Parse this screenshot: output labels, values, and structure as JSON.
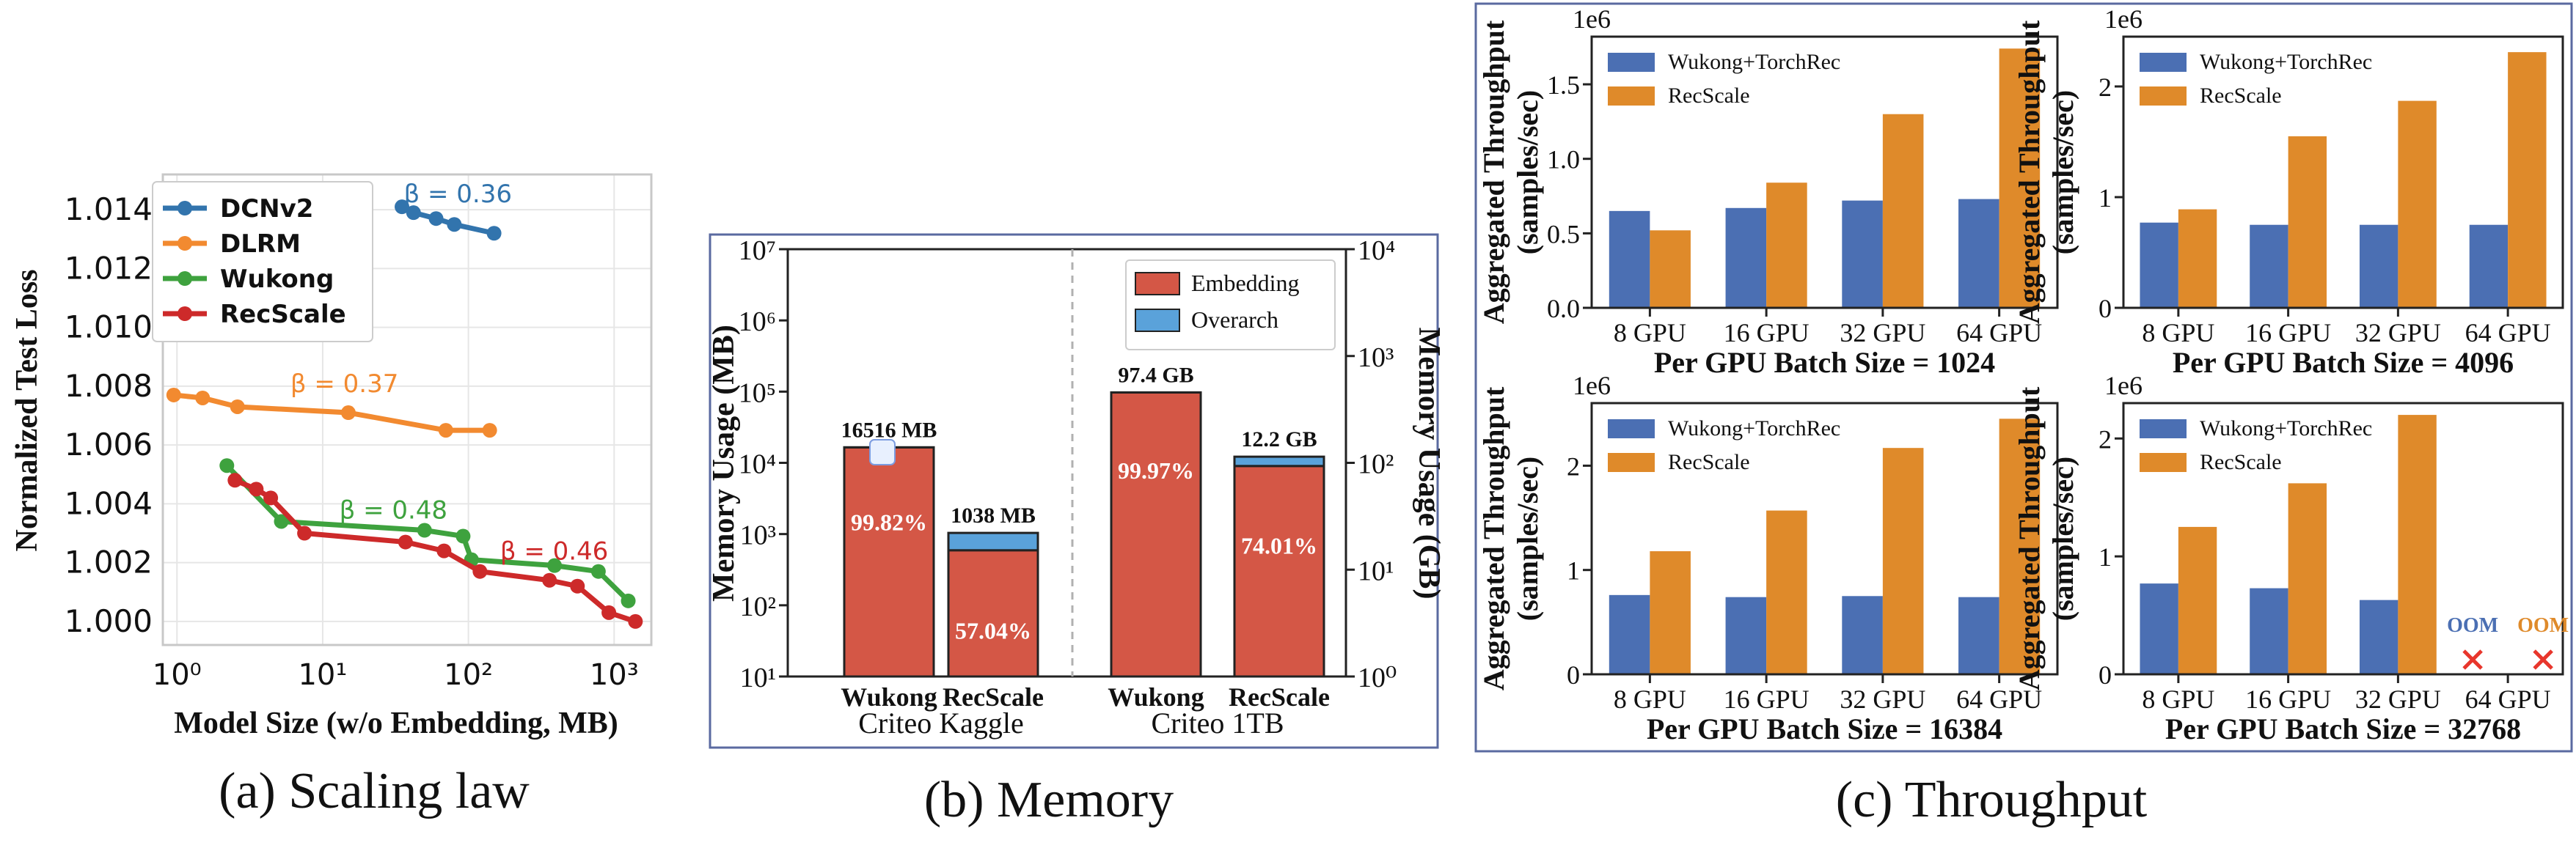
{
  "captions": {
    "a": "(a) Scaling law",
    "b": "(b) Memory",
    "c": "(c) Throughput"
  },
  "colors": {
    "dcnv2": "#3274ad",
    "dlrm": "#f28a30",
    "wukong": "#3ea23e",
    "recscale": "#cd2a2a",
    "emb_red": "#d45746",
    "overarch_blue": "#5aa2da",
    "wukong_bar": "#4b6fb3",
    "recscale_bar": "#df8a2a",
    "oom_blue": "#4b6fb3",
    "oom_orange": "#df8a2a",
    "oom_x": "#e8362c"
  },
  "chart_data": [
    {
      "id": "a",
      "type": "line",
      "xlabel": "Model Size (w/o Embedding, MB)",
      "ylabel": "Normalized Test Loss",
      "xscale": "log",
      "xlim": [
        0.8,
        1800
      ],
      "ylim": [
        0.9992,
        1.0152
      ],
      "xticks": [
        1,
        10,
        100,
        1000
      ],
      "xtick_labels": [
        "10⁰",
        "10¹",
        "10²",
        "10³"
      ],
      "yticks": [
        1.0,
        1.002,
        1.004,
        1.006,
        1.008,
        1.01,
        1.012,
        1.014
      ],
      "ytick_labels": [
        "1.000",
        "1.002",
        "1.004",
        "1.006",
        "1.008",
        "1.010",
        "1.012",
        "1.014"
      ],
      "grid": true,
      "legend_position": "top-left",
      "series": [
        {
          "name": "DCNv2",
          "color_key": "dcnv2",
          "x": [
            35,
            42,
            60,
            80,
            150
          ],
          "y": [
            1.0141,
            1.0139,
            1.0137,
            1.0135,
            1.0132
          ]
        },
        {
          "name": "DLRM",
          "color_key": "dlrm",
          "x": [
            0.95,
            1.5,
            2.6,
            15,
            70,
            140
          ],
          "y": [
            1.0077,
            1.0076,
            1.0073,
            1.0071,
            1.0065,
            1.0065
          ]
        },
        {
          "name": "Wukong",
          "color_key": "wukong",
          "x": [
            2.2,
            5.2,
            50,
            92,
            105,
            390,
            780,
            1250
          ],
          "y": [
            1.0053,
            1.0034,
            1.0031,
            1.0029,
            1.0021,
            1.0019,
            1.0017,
            1.0007
          ]
        },
        {
          "name": "RecScale",
          "color_key": "recscale",
          "x": [
            2.5,
            3.5,
            4.4,
            7.5,
            37,
            68,
            120,
            360,
            560,
            920,
            1400
          ],
          "y": [
            1.0048,
            1.0045,
            1.0042,
            1.003,
            1.0027,
            1.0024,
            1.0017,
            1.0014,
            1.0012,
            1.0003,
            1.0
          ]
        }
      ],
      "annotations": [
        {
          "text": "β = 0.36",
          "x": 36,
          "y": 1.01425,
          "color_key": "dcnv2"
        },
        {
          "text": "β = 0.37",
          "x": 6,
          "y": 1.0078,
          "color_key": "dlrm"
        },
        {
          "text": "β = 0.48",
          "x": 13,
          "y": 1.0035,
          "color_key": "wukong"
        },
        {
          "text": "β = 0.46",
          "x": 165,
          "y": 1.0021,
          "color_key": "recscale"
        }
      ]
    },
    {
      "id": "b",
      "type": "bar",
      "stacked": true,
      "ylabel": "Memory Usage (MB)",
      "ylabel_right": "Memory Usage (GB)",
      "yscale": "log",
      "ylim": [
        10,
        10000000
      ],
      "yticks": [
        10,
        100,
        1000,
        10000,
        100000,
        1000000,
        10000000
      ],
      "ytick_labels": [
        "10¹",
        "10²",
        "10³",
        "10⁴",
        "10⁵",
        "10⁶",
        "10⁷"
      ],
      "ylim_right": [
        1,
        10000
      ],
      "yticks_right": [
        1,
        10,
        100,
        1000,
        10000
      ],
      "ytick_labels_right": [
        "10⁰",
        "10¹",
        "10²",
        "10³",
        "10⁴"
      ],
      "legend_position": "top-right",
      "groups": [
        "Criteo Kaggle",
        "Criteo 1TB"
      ],
      "categories": [
        "Wukong",
        "RecScale",
        "Wukong",
        "RecScale"
      ],
      "series": [
        {
          "name": "Embedding",
          "color_key": "emb_red",
          "values": [
            16486,
            592,
            97400,
            9030
          ]
        },
        {
          "name": "Overarch",
          "color_key": "overarch_blue",
          "values": [
            30,
            446,
            30,
            3170
          ]
        }
      ],
      "total_labels": [
        "16516 MB",
        "1038 MB",
        "97.4 GB",
        "12.2 GB"
      ],
      "percent_labels": [
        "99.82%",
        "57.04%",
        "99.97%",
        "74.01%"
      ],
      "percent_label_positions": [
        1500,
        45,
        8000,
        700
      ]
    },
    {
      "id": "c1",
      "type": "bar",
      "title": "Per GPU Batch Size = 1024",
      "ylabel": "Aggregated Throughput\n(samples/sec)",
      "yscale_label": "1e6",
      "ylim": [
        0,
        1.82
      ],
      "yticks": [
        0,
        0.5,
        1.0,
        1.5
      ],
      "ytick_labels": [
        "0.0",
        "0.5",
        "1.0",
        "1.5"
      ],
      "categories": [
        "8 GPU",
        "16 GPU",
        "32 GPU",
        "64 GPU"
      ],
      "legend_position": "top-left",
      "series": [
        {
          "name": "Wukong+TorchRec",
          "color_key": "wukong_bar",
          "values": [
            0.65,
            0.67,
            0.72,
            0.73
          ]
        },
        {
          "name": "RecScale",
          "color_key": "recscale_bar",
          "values": [
            0.52,
            0.84,
            1.3,
            1.74
          ]
        }
      ]
    },
    {
      "id": "c2",
      "type": "bar",
      "title": "Per GPU Batch Size = 4096",
      "ylabel": "Aggregated Throughput\n(samples/sec)",
      "yscale_label": "1e6",
      "ylim": [
        0,
        2.45
      ],
      "yticks": [
        0,
        1,
        2
      ],
      "ytick_labels": [
        "0",
        "1",
        "2"
      ],
      "categories": [
        "8 GPU",
        "16 GPU",
        "32 GPU",
        "64 GPU"
      ],
      "legend_position": "top-left",
      "series": [
        {
          "name": "Wukong+TorchRec",
          "color_key": "wukong_bar",
          "values": [
            0.77,
            0.75,
            0.75,
            0.75
          ]
        },
        {
          "name": "RecScale",
          "color_key": "recscale_bar",
          "values": [
            0.89,
            1.55,
            1.87,
            2.31
          ]
        }
      ]
    },
    {
      "id": "c3",
      "type": "bar",
      "title": "Per GPU Batch Size = 16384",
      "ylabel": "Aggregated Throughput\n(samples/sec)",
      "yscale_label": "1e6",
      "ylim": [
        0,
        2.6
      ],
      "yticks": [
        0,
        1,
        2
      ],
      "ytick_labels": [
        "0",
        "1",
        "2"
      ],
      "categories": [
        "8 GPU",
        "16 GPU",
        "32 GPU",
        "64 GPU"
      ],
      "legend_position": "top-left",
      "series": [
        {
          "name": "Wukong+TorchRec",
          "color_key": "wukong_bar",
          "values": [
            0.76,
            0.74,
            0.75,
            0.74
          ]
        },
        {
          "name": "RecScale",
          "color_key": "recscale_bar",
          "values": [
            1.18,
            1.57,
            2.17,
            2.45
          ]
        }
      ]
    },
    {
      "id": "c4",
      "type": "bar",
      "title": "Per GPU Batch Size = 32768",
      "ylabel": "Aggregated Throughput\n(samples/sec)",
      "yscale_label": "1e6",
      "ylim": [
        0,
        2.3
      ],
      "yticks": [
        0,
        1,
        2
      ],
      "ytick_labels": [
        "0",
        "1",
        "2"
      ],
      "categories": [
        "8 GPU",
        "16 GPU",
        "32 GPU",
        "64 GPU"
      ],
      "legend_position": "top-left",
      "series": [
        {
          "name": "Wukong+TorchRec",
          "color_key": "wukong_bar",
          "values": [
            0.77,
            0.73,
            0.63,
            null
          ]
        },
        {
          "name": "RecScale",
          "color_key": "recscale_bar",
          "values": [
            1.25,
            1.62,
            2.2,
            null
          ]
        }
      ],
      "oom_labels": [
        "OOM",
        "OOM"
      ],
      "oom_category": "64 GPU"
    }
  ]
}
